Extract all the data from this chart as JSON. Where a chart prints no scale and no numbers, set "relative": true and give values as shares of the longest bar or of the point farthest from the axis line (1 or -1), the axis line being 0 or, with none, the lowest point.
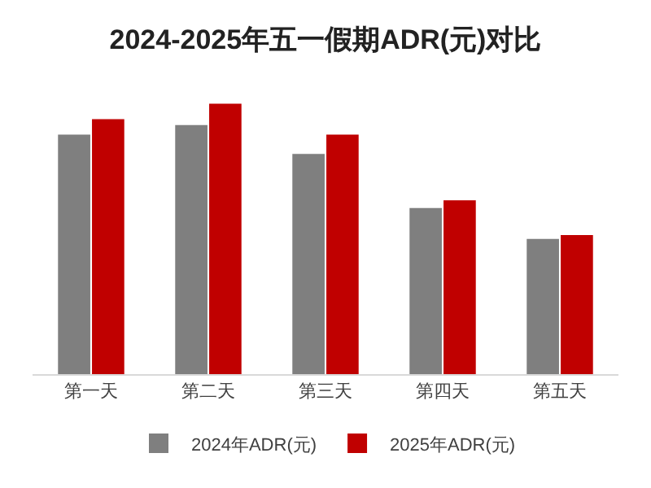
{
  "chart_data": {
    "type": "bar",
    "title": "2024-2025年五一假期ADR(元)对比",
    "categories": [
      "第一天",
      "第二天",
      "第三天",
      "第四天",
      "第五天"
    ],
    "relative": true,
    "series": [
      {
        "name": "2024年ADR(元)",
        "color": "#7f7f7f",
        "values": [
          0.886,
          0.921,
          0.814,
          0.614,
          0.5
        ]
      },
      {
        "name": "2025年ADR(元)",
        "color": "#c00000",
        "values": [
          0.943,
          1,
          0.886,
          0.643,
          0.514
        ]
      }
    ],
    "legend": "bottom"
  }
}
